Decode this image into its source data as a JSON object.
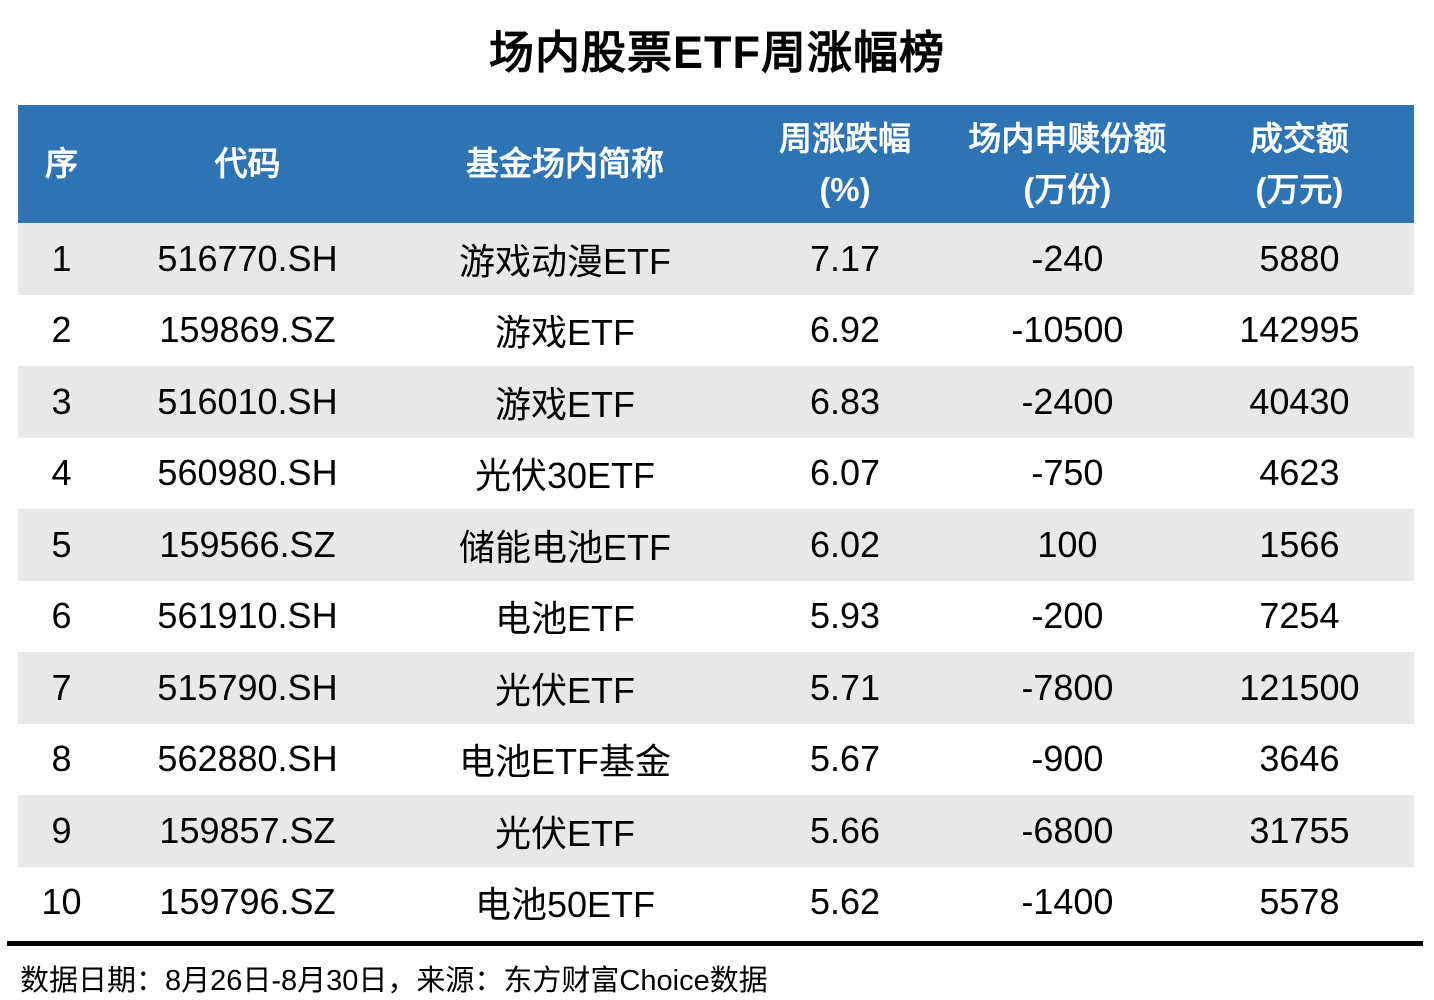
{
  "title": "场内股票ETF周涨幅榜",
  "colors": {
    "header_bg": "#2E74B5",
    "header_text": "#FFFFFF",
    "row_alt_bg": "#E8E8E8",
    "row_bg": "#FFFFFF",
    "text": "#000000",
    "footer_rule": "#000000"
  },
  "table": {
    "columns": [
      {
        "key": "rank",
        "label": "序",
        "unit": ""
      },
      {
        "key": "code",
        "label": "代码",
        "unit": ""
      },
      {
        "key": "name",
        "label": "基金场内简称",
        "unit": ""
      },
      {
        "key": "change",
        "label": "周涨跌幅",
        "unit": "(%)"
      },
      {
        "key": "shares",
        "label": "场内申赎份额",
        "unit": "(万份)"
      },
      {
        "key": "turnover",
        "label": "成交额",
        "unit": "(万元)"
      }
    ],
    "rows": [
      {
        "rank": "1",
        "code": "516770.SH",
        "name": "游戏动漫ETF",
        "change": "7.17",
        "shares": "-240",
        "turnover": "5880"
      },
      {
        "rank": "2",
        "code": "159869.SZ",
        "name": "游戏ETF",
        "change": "6.92",
        "shares": "-10500",
        "turnover": "142995"
      },
      {
        "rank": "3",
        "code": "516010.SH",
        "name": "游戏ETF",
        "change": "6.83",
        "shares": "-2400",
        "turnover": "40430"
      },
      {
        "rank": "4",
        "code": "560980.SH",
        "name": "光伏30ETF",
        "change": "6.07",
        "shares": "-750",
        "turnover": "4623"
      },
      {
        "rank": "5",
        "code": "159566.SZ",
        "name": "储能电池ETF",
        "change": "6.02",
        "shares": "100",
        "turnover": "1566"
      },
      {
        "rank": "6",
        "code": "561910.SH",
        "name": "电池ETF",
        "change": "5.93",
        "shares": "-200",
        "turnover": "7254"
      },
      {
        "rank": "7",
        "code": "515790.SH",
        "name": "光伏ETF",
        "change": "5.71",
        "shares": "-7800",
        "turnover": "121500"
      },
      {
        "rank": "8",
        "code": "562880.SH",
        "name": "电池ETF基金",
        "change": "5.67",
        "shares": "-900",
        "turnover": "3646"
      },
      {
        "rank": "9",
        "code": "159857.SZ",
        "name": "光伏ETF",
        "change": "5.66",
        "shares": "-6800",
        "turnover": "31755"
      },
      {
        "rank": "10",
        "code": "159796.SZ",
        "name": "电池50ETF",
        "change": "5.62",
        "shares": "-1400",
        "turnover": "5578"
      }
    ]
  },
  "footer": {
    "note": "数据日期：8月26日-8月30日，来源：东方财富Choice数据"
  },
  "chart_data": {
    "type": "table",
    "title": "场内股票ETF周涨幅榜",
    "columns": [
      "序",
      "代码",
      "基金场内简称",
      "周涨跌幅(%)",
      "场内申赎份额(万份)",
      "成交额(万元)"
    ],
    "rows": [
      [
        1,
        "516770.SH",
        "游戏动漫ETF",
        7.17,
        -240,
        5880
      ],
      [
        2,
        "159869.SZ",
        "游戏ETF",
        6.92,
        -10500,
        142995
      ],
      [
        3,
        "516010.SH",
        "游戏ETF",
        6.83,
        -2400,
        40430
      ],
      [
        4,
        "560980.SH",
        "光伏30ETF",
        6.07,
        -750,
        4623
      ],
      [
        5,
        "159566.SZ",
        "储能电池ETF",
        6.02,
        100,
        1566
      ],
      [
        6,
        "561910.SH",
        "电池ETF",
        5.93,
        -200,
        7254
      ],
      [
        7,
        "515790.SH",
        "光伏ETF",
        5.71,
        -7800,
        121500
      ],
      [
        8,
        "562880.SH",
        "电池ETF基金",
        5.67,
        -900,
        3646
      ],
      [
        9,
        "159857.SZ",
        "光伏ETF",
        5.66,
        -6800,
        31755
      ],
      [
        10,
        "159796.SZ",
        "电池50ETF",
        5.62,
        -1400,
        5578
      ]
    ],
    "note": "数据日期：8月26日-8月30日，来源：东方财富Choice数据"
  }
}
